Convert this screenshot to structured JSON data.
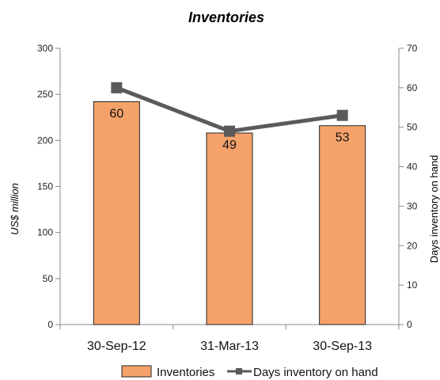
{
  "chart_data": {
    "type": "bar",
    "title": "Inventories",
    "categories": [
      "30-Sep-12",
      "31-Mar-13",
      "30-Sep-13"
    ],
    "ylabel": "US$ million",
    "ylabel_right": "Days inventory on hand",
    "ylim": [
      0,
      300
    ],
    "yticks": [
      0,
      50,
      100,
      150,
      200,
      250,
      300
    ],
    "ylim_right": [
      0,
      70
    ],
    "yticks_right": [
      0,
      10,
      20,
      30,
      40,
      50,
      60,
      70
    ],
    "grid": false,
    "legend_position": "bottom",
    "series": [
      {
        "name": "Inventories",
        "type": "bar",
        "axis": "left",
        "values": [
          242,
          208,
          216
        ],
        "color": "#f5a26a"
      },
      {
        "name": "Days inventory on hand",
        "type": "line",
        "axis": "right",
        "values": [
          60,
          49,
          53
        ],
        "labels": [
          "60",
          "49",
          "53"
        ],
        "color": "#5a5a5a"
      }
    ]
  }
}
